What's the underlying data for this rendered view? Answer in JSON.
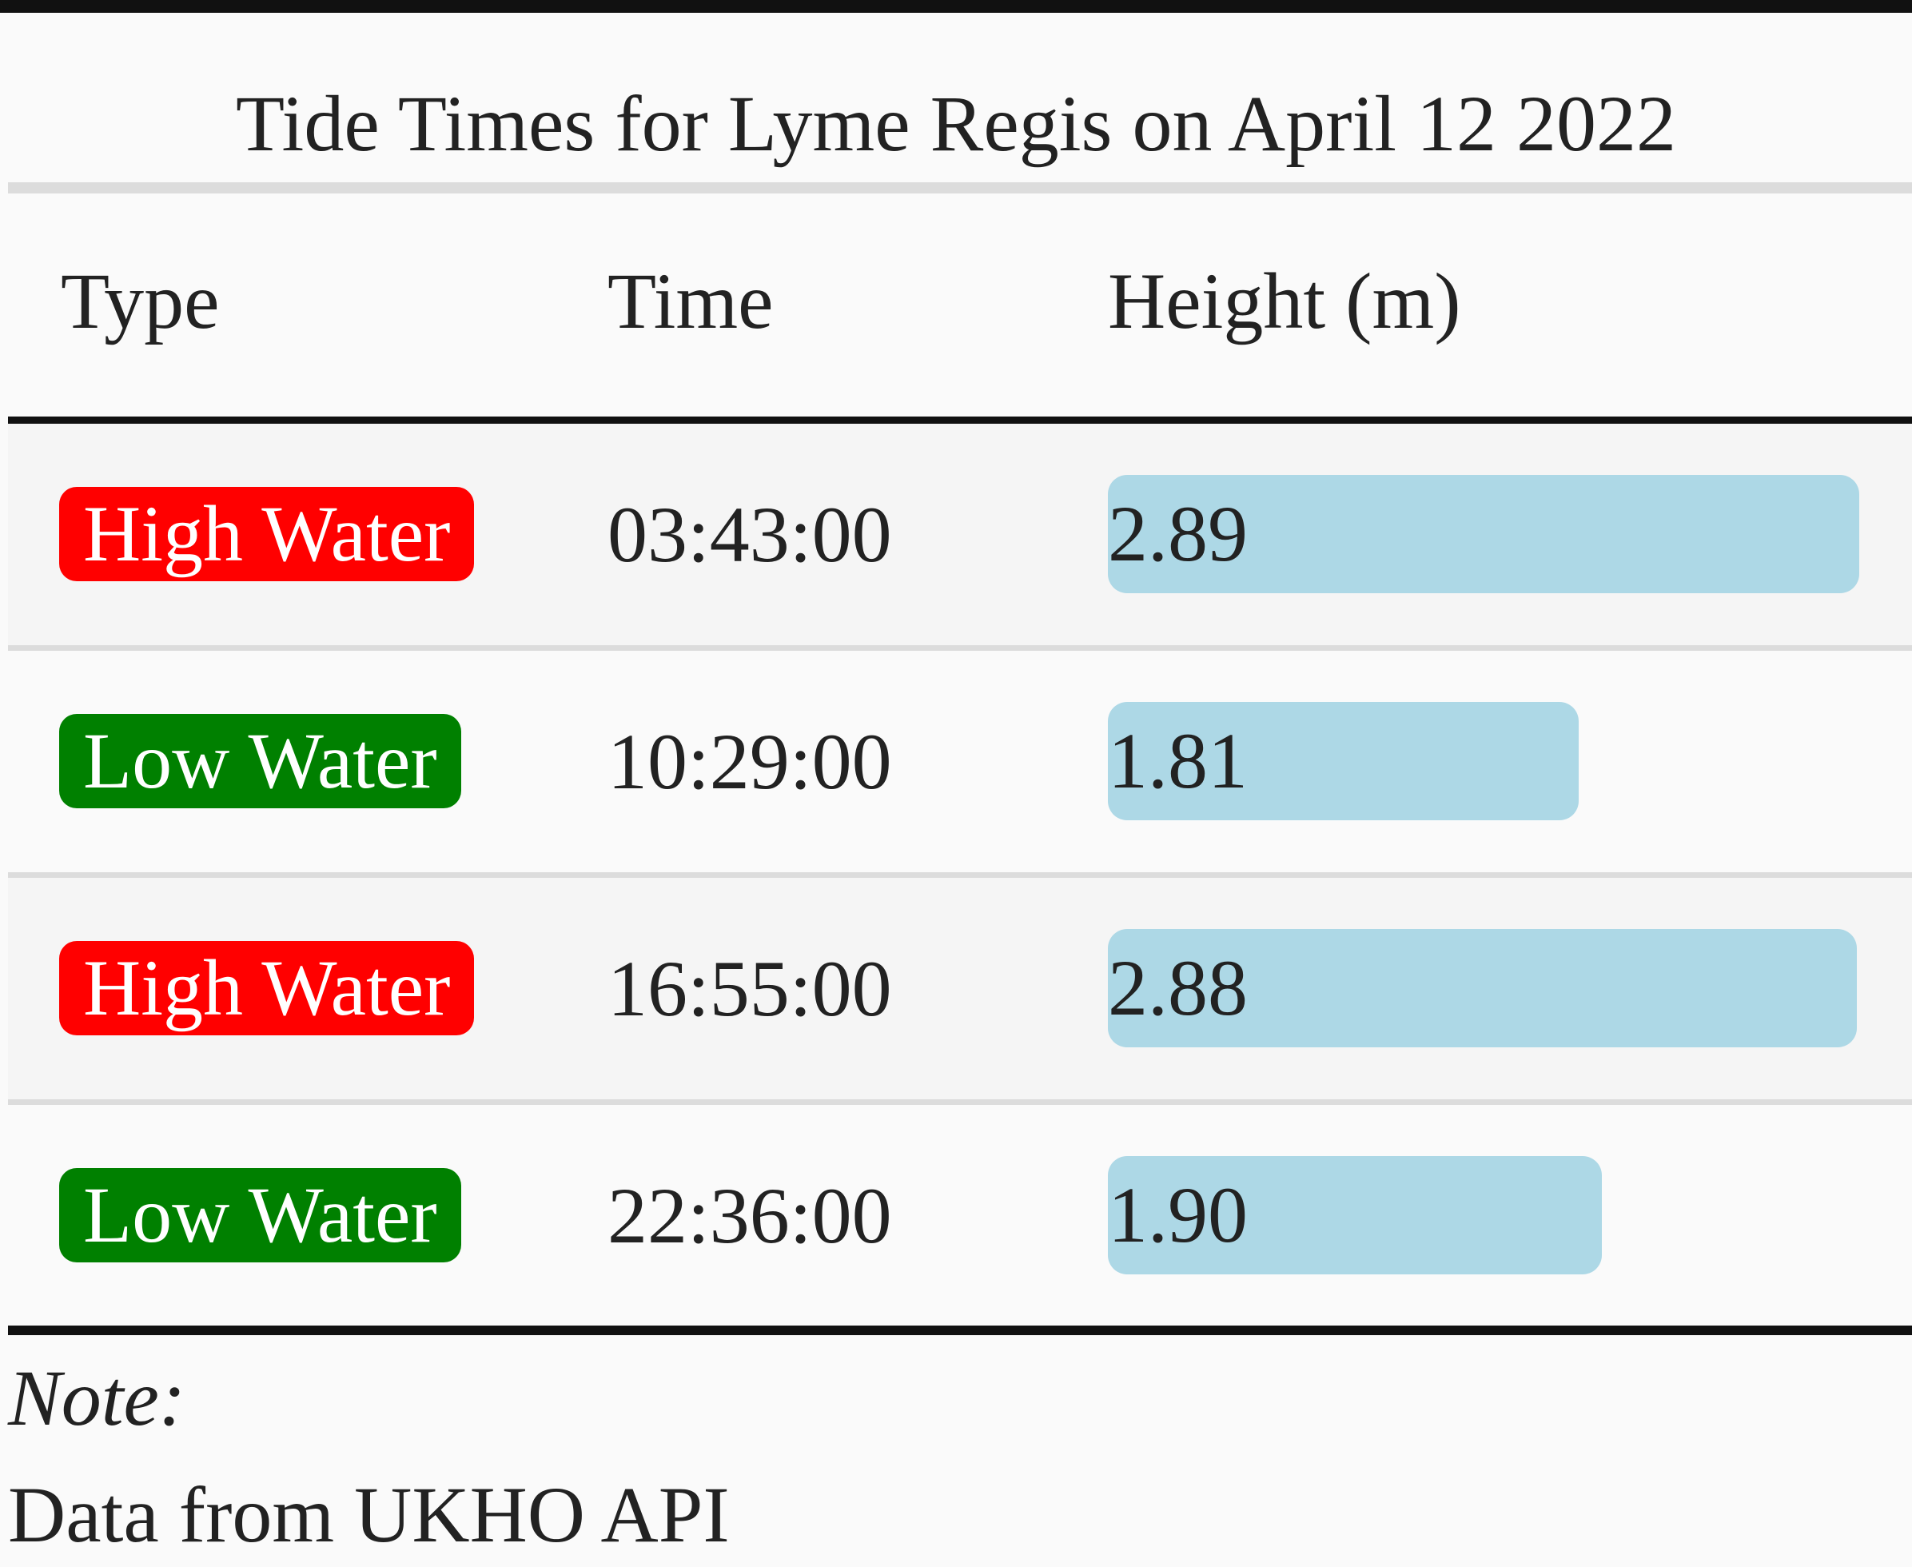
{
  "title": "Tide Times for Lyme Regis on April 12 2022",
  "columns": [
    "Type",
    "Time",
    "Height (m)"
  ],
  "colors": {
    "high_water": "#ff0000",
    "low_water": "#008000",
    "height_bar": "#add8e6"
  },
  "height_bar_max": 2.89,
  "rows": [
    {
      "type": "High Water",
      "kind": "high",
      "time": "03:43:00",
      "height": "2.89",
      "value": 2.89
    },
    {
      "type": "Low Water",
      "kind": "low",
      "time": "10:29:00",
      "height": "1.81",
      "value": 1.81
    },
    {
      "type": "High Water",
      "kind": "high",
      "time": "16:55:00",
      "height": "2.88",
      "value": 2.88
    },
    {
      "type": "Low Water",
      "kind": "low",
      "time": "22:36:00",
      "height": "1.90",
      "value": 1.9
    }
  ],
  "note": {
    "label": "Note:",
    "text": "Data from UKHO API"
  }
}
